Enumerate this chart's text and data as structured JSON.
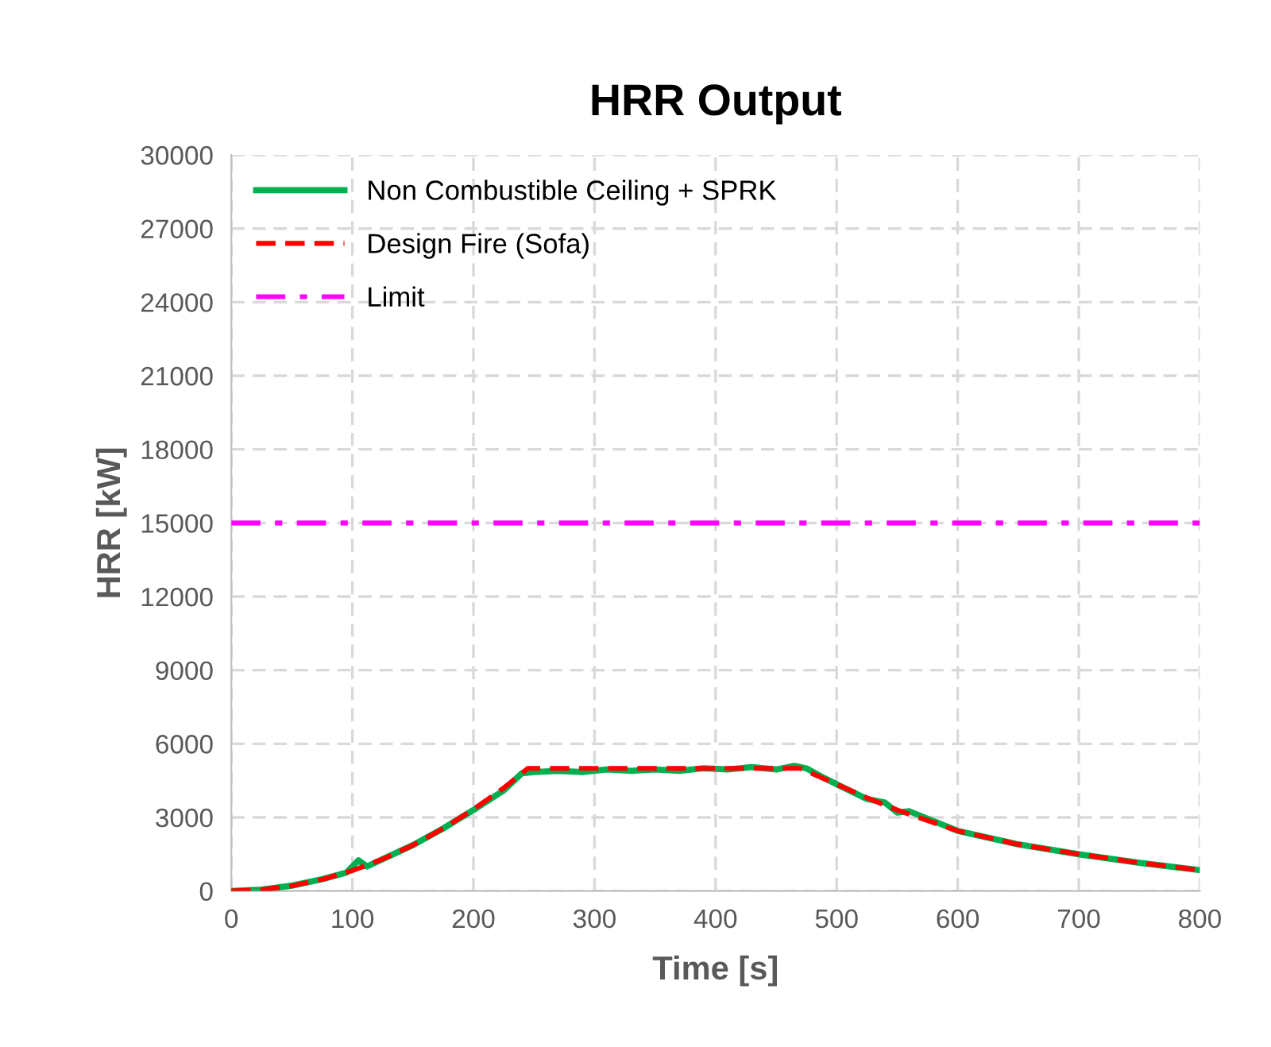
{
  "chart_data": {
    "type": "line",
    "title": "HRR Output",
    "xlabel": "Time [s]",
    "ylabel": "HRR [kW]",
    "xlim": [
      0,
      800
    ],
    "xticks": [
      0,
      100,
      200,
      300,
      400,
      500,
      600,
      700,
      800
    ],
    "ylim": [
      0,
      30000
    ],
    "yticks": [
      0,
      3000,
      6000,
      9000,
      12000,
      15000,
      18000,
      21000,
      24000,
      27000,
      30000
    ],
    "grid": true,
    "legend": "top left",
    "marker": "none",
    "series": [
      {
        "name": "Non Combustible Ceiling + SPRK",
        "color": "#00b050",
        "line_style": "solid",
        "x": [
          0,
          25,
          50,
          75,
          95,
          105,
          112,
          125,
          150,
          175,
          200,
          225,
          240,
          250,
          270,
          290,
          310,
          330,
          350,
          370,
          390,
          410,
          430,
          450,
          465,
          475,
          490,
          500,
          525,
          540,
          550,
          560,
          575,
          600,
          650,
          700,
          750,
          800
        ],
        "values": [
          0,
          60,
          220,
          480,
          750,
          1250,
          1000,
          1300,
          1870,
          2550,
          3300,
          4100,
          4800,
          4850,
          4900,
          4850,
          4950,
          4900,
          4950,
          4900,
          5000,
          4950,
          5050,
          4950,
          5100,
          5000,
          4600,
          4350,
          3750,
          3600,
          3200,
          3250,
          2950,
          2450,
          1900,
          1500,
          1150,
          850
        ]
      },
      {
        "name": "Design Fire (Sofa)",
        "color": "#ff0000",
        "line_style": "dashed",
        "x": [
          0,
          25,
          50,
          75,
          100,
          125,
          150,
          175,
          200,
          225,
          245,
          300,
          350,
          400,
          450,
          470,
          500,
          525,
          550,
          600,
          650,
          700,
          750,
          800
        ],
        "values": [
          0,
          50,
          210,
          470,
          830,
          1300,
          1870,
          2550,
          3330,
          4200,
          5000,
          5000,
          5000,
          5000,
          5000,
          5000,
          4350,
          3800,
          3300,
          2450,
          1900,
          1500,
          1150,
          850
        ]
      },
      {
        "name": "Limit",
        "color": "#ff00ff",
        "line_style": "dashdot",
        "x": [
          0,
          800
        ],
        "values": [
          15000,
          15000
        ]
      }
    ]
  }
}
